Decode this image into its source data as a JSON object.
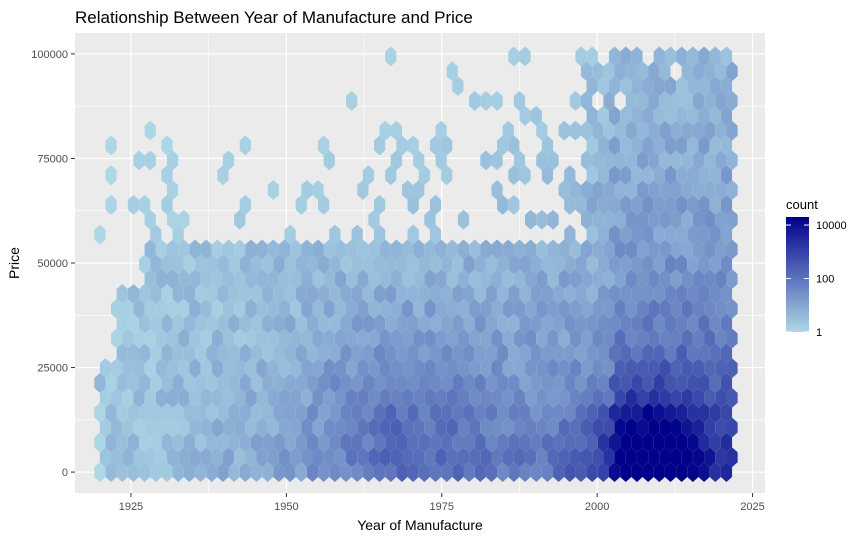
{
  "chart_data": {
    "type": "heatmap",
    "subtype": "hexbin",
    "title": "Relationship Between Year of Manufacture and Price",
    "xlabel": "Year of Manufacture",
    "ylabel": "Price",
    "x_ticks": [
      1925,
      1950,
      1975,
      2000,
      2025
    ],
    "y_ticks": [
      0,
      25000,
      50000,
      75000,
      100000
    ],
    "y_tick_labels": [
      "0",
      "25000",
      "50000",
      "75000",
      "100000"
    ],
    "xlim": [
      1916,
      2027
    ],
    "ylim": [
      -5000,
      105000
    ],
    "grid": true,
    "legend": {
      "title": "count",
      "position": "right",
      "scale": "log10",
      "labels": [
        "10000",
        "100",
        "1"
      ],
      "values": [
        10000,
        100,
        1
      ],
      "range": [
        1,
        20000
      ],
      "low_color": "#add8e6",
      "high_color": "#00008b"
    },
    "data_extent": {
      "x": [
        1920,
        2022
      ],
      "y": [
        0,
        101000
      ]
    },
    "density_peak": {
      "year": 2008,
      "price": 5000,
      "count": 20000
    }
  }
}
